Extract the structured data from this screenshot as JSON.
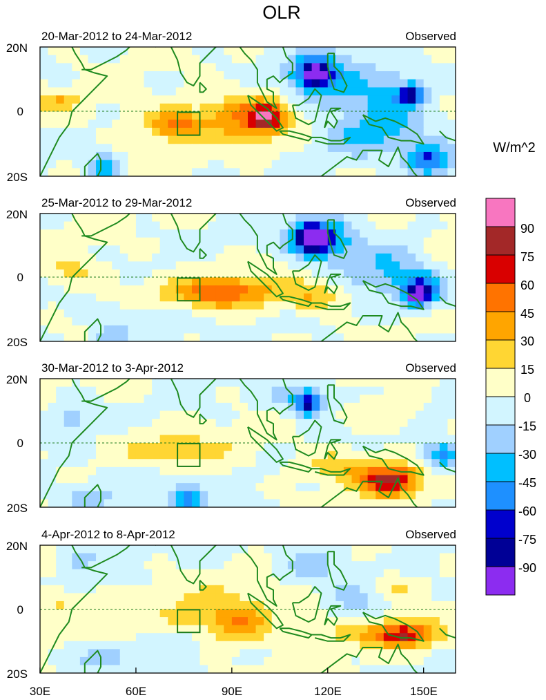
{
  "chart_data": {
    "type": "heatmap",
    "title": "OLR",
    "units_label": "W/m^2",
    "x_ticks": [
      "30E",
      "60E",
      "90E",
      "120E",
      "150E"
    ],
    "x_tick_values": [
      30,
      60,
      90,
      120,
      150
    ],
    "xlim": [
      30,
      160
    ],
    "ylim": [
      -20,
      20
    ],
    "y_ticks": [
      "20N",
      "0",
      "20S"
    ],
    "y_tick_values": [
      20,
      0,
      -20
    ],
    "colorbar": {
      "levels": [
        "90",
        "75",
        "60",
        "45",
        "30",
        "15",
        "0",
        "-15",
        "-30",
        "-45",
        "-60",
        "-75",
        "-90"
      ],
      "colors": [
        "#f876c0",
        "#a32828",
        "#d90000",
        "#ff7300",
        "#ffa500",
        "#ffd633",
        "#ffffc8",
        "#d2f5ff",
        "#a0d0ff",
        "#00bfff",
        "#1e90ff",
        "#0000cd",
        "#000096",
        "#8c2cf0"
      ]
    },
    "panels": [
      {
        "date_label": "20-Mar-2012 to 24-Mar-2012",
        "source_label": "Observed",
        "blobs": [
          {
            "lon": 82,
            "lat": -3,
            "rlon": 24,
            "rlat": 7,
            "v": 20
          },
          {
            "lon": 97,
            "lat": -1,
            "rlon": 12,
            "rlat": 7,
            "v": 35
          },
          {
            "lon": 101,
            "lat": -2,
            "rlon": 5,
            "rlat": 4,
            "v": 50
          },
          {
            "lon": 72,
            "lat": -4,
            "rlon": 8,
            "rlat": 4,
            "v": 35
          },
          {
            "lon": 36,
            "lat": 3,
            "rlon": 6,
            "rlat": 3,
            "v": 30
          },
          {
            "lon": 118,
            "lat": 10,
            "rlon": 12,
            "rlat": 9,
            "v": -40
          },
          {
            "lon": 116,
            "lat": 12,
            "rlon": 5,
            "rlat": 4,
            "v": -80
          },
          {
            "lon": 140,
            "lat": 4,
            "rlon": 14,
            "rlat": 10,
            "v": -35
          },
          {
            "lon": 146,
            "lat": 5,
            "rlon": 4,
            "rlat": 3,
            "v": -62
          },
          {
            "lon": 152,
            "lat": -15,
            "rlon": 7,
            "rlat": 5,
            "v": -65
          },
          {
            "lon": 132,
            "lat": -8,
            "rlon": 13,
            "rlat": 6,
            "v": -30
          },
          {
            "lon": 50,
            "lat": -17,
            "rlon": 5,
            "rlat": 4,
            "v": -40
          },
          {
            "lon": 155,
            "lat": 3,
            "rlon": 7,
            "rlat": 5,
            "v": 12
          }
        ]
      },
      {
        "date_label": "25-Mar-2012 to 29-Mar-2012",
        "source_label": "Observed",
        "blobs": [
          {
            "lon": 90,
            "lat": -4,
            "rlon": 26,
            "rlat": 6,
            "v": 22
          },
          {
            "lon": 86,
            "lat": -5,
            "rlon": 12,
            "rlat": 4,
            "v": 40
          },
          {
            "lon": 115,
            "lat": -6,
            "rlon": 10,
            "rlat": 4,
            "v": 25
          },
          {
            "lon": 40,
            "lat": 2,
            "rlon": 8,
            "rlat": 5,
            "v": 20
          },
          {
            "lon": 118,
            "lat": 12,
            "rlon": 10,
            "rlat": 7,
            "v": -55
          },
          {
            "lon": 115,
            "lat": 12,
            "rlon": 5,
            "rlat": 4,
            "v": -92
          },
          {
            "lon": 138,
            "lat": 3,
            "rlon": 14,
            "rlat": 9,
            "v": -30
          },
          {
            "lon": 150,
            "lat": -4,
            "rlon": 7,
            "rlat": 5,
            "v": -55
          },
          {
            "lon": 148,
            "lat": -6,
            "rlon": 3,
            "rlat": 3,
            "v": -78
          },
          {
            "lon": 65,
            "lat": -13,
            "rlon": 12,
            "rlat": 4,
            "v": -20
          },
          {
            "lon": 52,
            "lat": -18,
            "rlon": 5,
            "rlat": 3,
            "v": -35
          },
          {
            "lon": 156,
            "lat": 8,
            "rlon": 6,
            "rlat": 5,
            "v": 18
          }
        ]
      },
      {
        "date_label": "30-Mar-2012 to 3-Apr-2012",
        "source_label": "Observed",
        "blobs": [
          {
            "lon": 72,
            "lat": -2,
            "rlon": 20,
            "rlat": 6,
            "v": 20
          },
          {
            "lon": 138,
            "lat": -11,
            "rlon": 12,
            "rlat": 6,
            "v": 35
          },
          {
            "lon": 140,
            "lat": -12,
            "rlon": 7,
            "rlat": 4,
            "v": 50
          },
          {
            "lon": 122,
            "lat": -7,
            "rlon": 10,
            "rlat": 4,
            "v": 28
          },
          {
            "lon": 138,
            "lat": 8,
            "rlon": 10,
            "rlat": 4,
            "v": 15
          },
          {
            "lon": 112,
            "lat": 14,
            "rlon": 9,
            "rlat": 5,
            "v": -35
          },
          {
            "lon": 114,
            "lat": 12,
            "rlon": 3,
            "rlat": 3,
            "v": -65
          },
          {
            "lon": 156,
            "lat": -4,
            "rlon": 7,
            "rlat": 4,
            "v": -50
          },
          {
            "lon": 76,
            "lat": -17,
            "rlon": 5,
            "rlat": 4,
            "v": -55
          },
          {
            "lon": 45,
            "lat": -17,
            "rlon": 8,
            "rlat": 4,
            "v": -35
          },
          {
            "lon": 60,
            "lat": -10,
            "rlon": 10,
            "rlat": 4,
            "v": -15
          },
          {
            "lon": 40,
            "lat": 8,
            "rlon": 6,
            "rlat": 6,
            "v": -20
          }
        ]
      },
      {
        "date_label": "4-Apr-2012 to 8-Apr-2012",
        "source_label": "Observed",
        "blobs": [
          {
            "lon": 88,
            "lat": -1,
            "rlon": 24,
            "rlat": 8,
            "v": 22
          },
          {
            "lon": 92,
            "lat": -5,
            "rlon": 8,
            "rlat": 5,
            "v": 35
          },
          {
            "lon": 140,
            "lat": -8,
            "rlon": 18,
            "rlat": 5,
            "v": 30
          },
          {
            "lon": 144,
            "lat": -8,
            "rlon": 8,
            "rlat": 3,
            "v": 50
          },
          {
            "lon": 140,
            "lat": 7,
            "rlon": 8,
            "rlat": 4,
            "v": 20
          },
          {
            "lon": 115,
            "lat": 14,
            "rlon": 10,
            "rlat": 6,
            "v": -25
          },
          {
            "lon": 130,
            "lat": 3,
            "rlon": 9,
            "rlat": 6,
            "v": -20
          },
          {
            "lon": 50,
            "lat": -15,
            "rlon": 8,
            "rlat": 4,
            "v": -30
          },
          {
            "lon": 70,
            "lat": -10,
            "rlon": 8,
            "rlat": 4,
            "v": -15
          },
          {
            "lon": 42,
            "lat": 16,
            "rlon": 6,
            "rlat": 4,
            "v": -25
          },
          {
            "lon": 36,
            "lat": 2,
            "rlon": 6,
            "rlat": 4,
            "v": 20
          }
        ]
      }
    ]
  }
}
